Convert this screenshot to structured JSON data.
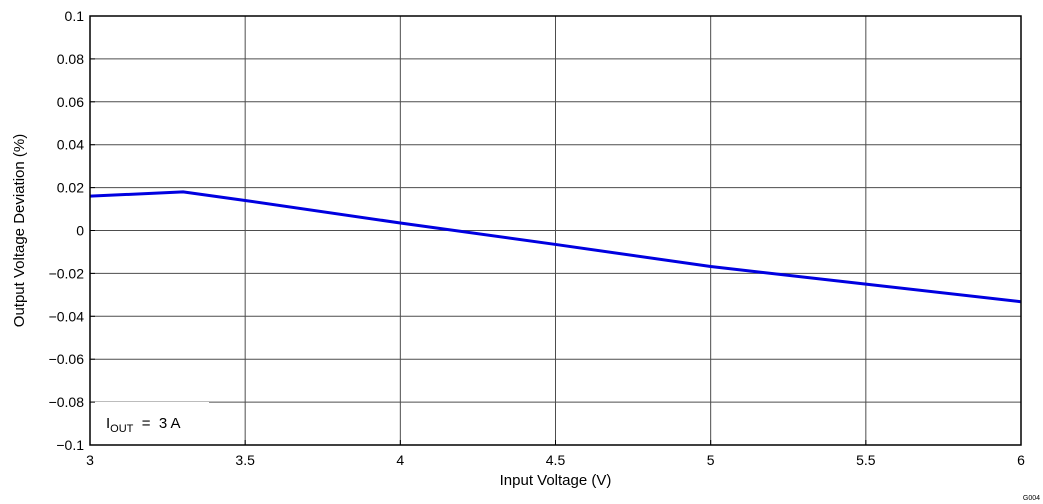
{
  "chart_data": {
    "type": "line",
    "title": "",
    "xlabel": "Input Voltage (V)",
    "ylabel": "Output Voltage Deviation (%)",
    "xlim": [
      3,
      6
    ],
    "ylim": [
      -0.1,
      0.1
    ],
    "x_ticks": [
      3,
      3.5,
      4,
      4.5,
      5,
      5.5,
      6
    ],
    "x_tick_labels": [
      "3",
      "3.5",
      "4",
      "4.5",
      "5",
      "5.5",
      "6"
    ],
    "y_ticks": [
      0.1,
      0.08,
      0.06,
      0.04,
      0.02,
      0,
      -0.02,
      -0.04,
      -0.06,
      -0.08,
      -0.1
    ],
    "y_tick_labels": [
      "0.1",
      "0.08",
      "0.06",
      "0.04",
      "0.02",
      "0",
      "−0.02",
      "−0.04",
      "−0.06",
      "−0.08",
      "−0.1"
    ],
    "grid": true,
    "series": [
      {
        "color": "#0000e0",
        "x": [
          3,
          3.3,
          3.5,
          4,
          4.5,
          5,
          5.5,
          6
        ],
        "y": [
          0.016,
          0.018,
          0.014,
          0.0035,
          -0.0065,
          -0.0168,
          -0.025,
          -0.0332
        ]
      }
    ],
    "annotation": {
      "prefix": "I",
      "subscript": "OUT",
      "suffix": "  =  3 A"
    },
    "figure_id": "G004"
  }
}
